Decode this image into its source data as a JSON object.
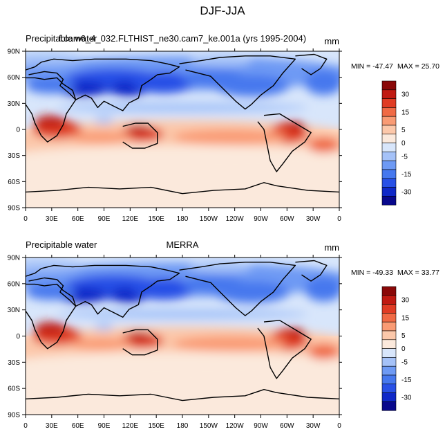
{
  "figure": {
    "title": "DJF-JJA"
  },
  "chart_data": [
    {
      "type": "heatmap",
      "title_left": "Precipitable water",
      "title_center": "f.cam6_4_032.FLTHIST_ne30.cam7_ke.001a (yrs 1995-2004)",
      "units": "mm",
      "min_label": "MIN = -47.47",
      "max_label": "MAX =  25.70",
      "min": -47.47,
      "max": 25.7,
      "x_ticks": [
        "0",
        "30E",
        "60E",
        "90E",
        "120E",
        "150E",
        "180",
        "150W",
        "120W",
        "90W",
        "60W",
        "30W",
        "0"
      ],
      "y_ticks": [
        "90N",
        "60N",
        "30N",
        "0",
        "30S",
        "60S",
        "90S"
      ],
      "colorbar_levels": [
        "30",
        "15",
        "5",
        "0",
        "-5",
        "-15",
        "-30"
      ],
      "pattern": "Negative (blue) values over the Northern Hemisphere 0-60N, strongest over South and East Asia and the North Pacific; positive (red) values over the Southern Hemisphere tropics/subtropics, strongest over southern Africa, Australia and South America."
    },
    {
      "type": "heatmap",
      "title_left": "Precipitable water",
      "title_center": "MERRA",
      "units": "mm",
      "min_label": "MIN = -49.33",
      "max_label": "MAX =  33.77",
      "min": -49.33,
      "max": 33.77,
      "x_ticks": [
        "0",
        "30E",
        "60E",
        "90E",
        "120E",
        "150E",
        "180",
        "150W",
        "120W",
        "90W",
        "60W",
        "30W",
        "0"
      ],
      "y_ticks": [
        "90N",
        "60N",
        "30N",
        "0",
        "30S",
        "60S",
        "90S"
      ],
      "colorbar_levels": [
        "30",
        "15",
        "5",
        "0",
        "-5",
        "-15",
        "-30"
      ],
      "pattern": "Negative (blue) values over the Northern Hemisphere 0-60N, strongest over South and East Asia; positive (red) values over the Southern Hemisphere, strongest over southern Africa, Australia and South America."
    }
  ],
  "colors": {
    "levels": [
      "#08088c",
      "#0f28c8",
      "#2850e6",
      "#4678ee",
      "#6e9af4",
      "#a5c2f8",
      "#d8e6fb",
      "#fbe9dc",
      "#fcc8aa",
      "#f99b74",
      "#f06a45",
      "#e03c24",
      "#c01a12",
      "#8a0808"
    ]
  }
}
